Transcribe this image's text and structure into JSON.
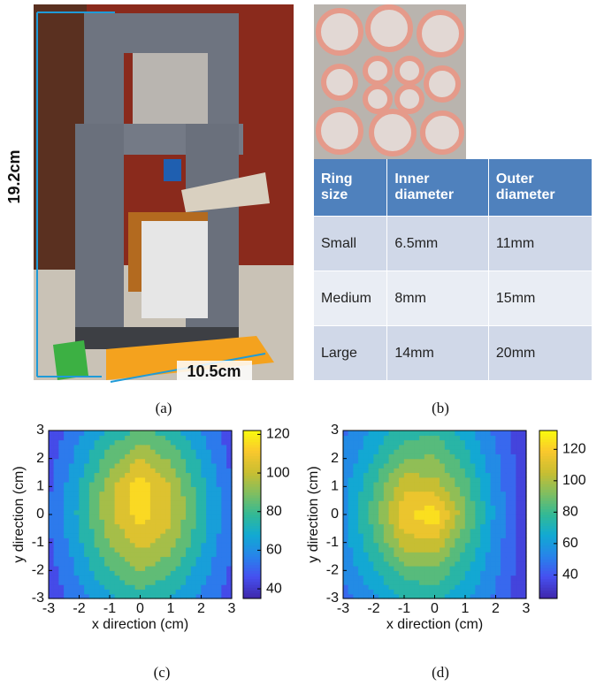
{
  "figure": {
    "captions": [
      "(a)",
      "(b)",
      "(c)",
      "(d)"
    ],
    "photo_labels": {
      "height": "19.2cm",
      "width": "10.5cm"
    },
    "table": {
      "header": [
        "Ring size",
        "Inner diameter",
        "Outer diameter"
      ],
      "rows": [
        [
          "Small",
          "6.5mm",
          "11mm"
        ],
        [
          "Medium",
          "8mm",
          "15mm"
        ],
        [
          "Large",
          "14mm",
          "20mm"
        ]
      ]
    }
  },
  "chart_data": [
    {
      "type": "contour",
      "colormap": "parula",
      "x": [
        -3,
        -2,
        -1,
        0,
        1,
        2,
        3
      ],
      "y": [
        -3,
        -2,
        -1,
        0,
        1,
        2,
        3
      ],
      "z": [
        [
          42,
          55,
          68,
          75,
          70,
          58,
          45
        ],
        [
          45,
          62,
          80,
          90,
          82,
          65,
          48
        ],
        [
          48,
          68,
          90,
          104,
          95,
          72,
          50
        ],
        [
          50,
          72,
          98,
          115,
          102,
          76,
          52
        ],
        [
          48,
          70,
          96,
          117,
          100,
          74,
          50
        ],
        [
          45,
          64,
          85,
          100,
          88,
          68,
          47
        ],
        [
          42,
          58,
          72,
          82,
          75,
          60,
          44
        ]
      ],
      "xlim": [
        -3,
        3
      ],
      "ylim": [
        -3,
        3
      ],
      "xticks": [
        -3,
        -2,
        -1,
        0,
        1,
        2,
        3
      ],
      "yticks": [
        -3,
        -2,
        -1,
        0,
        1,
        2,
        3
      ],
      "xlabel": "x direction (cm)",
      "ylabel": "y direction (cm)",
      "clim": [
        35,
        122
      ],
      "cticks": [
        40,
        60,
        80,
        100,
        120
      ]
    },
    {
      "type": "contour",
      "colormap": "parula",
      "x": [
        -3,
        -2,
        -1,
        0,
        1,
        2,
        3
      ],
      "y": [
        -3,
        -2,
        -1,
        0,
        1,
        2,
        3
      ],
      "z": [
        [
          45,
          58,
          70,
          72,
          62,
          48,
          30
        ],
        [
          52,
          68,
          85,
          88,
          72,
          52,
          32
        ],
        [
          55,
          78,
          105,
          108,
          82,
          55,
          33
        ],
        [
          58,
          85,
          118,
          128,
          92,
          58,
          34
        ],
        [
          55,
          80,
          108,
          105,
          85,
          55,
          33
        ],
        [
          52,
          70,
          90,
          92,
          75,
          52,
          32
        ],
        [
          48,
          62,
          75,
          78,
          65,
          48,
          30
        ]
      ],
      "xlim": [
        -3,
        3
      ],
      "ylim": [
        -3,
        3
      ],
      "xticks": [
        -3,
        -2,
        -1,
        0,
        1,
        2,
        3
      ],
      "yticks": [
        -3,
        -2,
        -1,
        0,
        1,
        2,
        3
      ],
      "xlabel": "x direction (cm)",
      "ylabel": "y direction (cm)",
      "clim": [
        25,
        132
      ],
      "cticks": [
        40,
        60,
        80,
        100,
        120
      ]
    }
  ]
}
